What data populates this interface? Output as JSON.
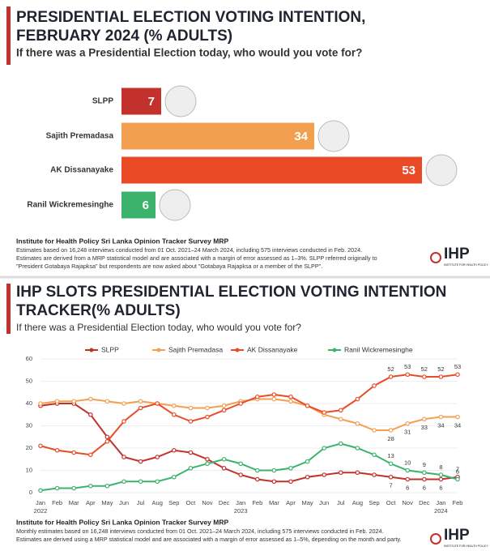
{
  "chart_data": [
    {
      "type": "hbar",
      "title": "PRESIDENTIAL ELECTION VOTING INTENTION,",
      "title_line2": "FEBRUARY 2024 (% ADULTS)",
      "subtitle": "If there was a Presidential Election today, who would you vote for?",
      "categories": [
        "SLPP",
        "Sajith Premadasa",
        "AK Dissanayake",
        "Ranil Wickremesinghe"
      ],
      "values": [
        7,
        34,
        53,
        6
      ],
      "colors": [
        "#c2312b",
        "#f2a04f",
        "#ea4b26",
        "#3bb36c"
      ],
      "source": "Institute for Health Policy Sri Lanka Opinion Tracker Survey MRP",
      "notes": [
        "Estimates based on 16,248 interviews conducted from 01 Oct. 2021–24 March 2024, including 575 interviews conducted in Feb. 2024.",
        "Estimates are derived from a MRP statistical model and are associated with a margin of error assessed as 1–3%. SLPP referred originally to",
        "\"President Gotabaya Rajapksa\" but respondents are now asked about \"Gotabaya Rajapksa or a member of the SLPP\"."
      ],
      "logo": "IHP",
      "logo_sub": "INSTITUTE FOR HEALTH POLICY"
    },
    {
      "type": "line",
      "title": "IHP SLOTS PRESIDENTIAL ELECTION VOTING INTENTION",
      "title_line2": "TRACKER(% ADULTS)",
      "subtitle": "If there was a Presidential Election today, who would you vote for?",
      "categories": [
        "Jan 2022",
        "Feb",
        "Mar",
        "Apr",
        "May",
        "Jun",
        "Jul",
        "Aug",
        "Sep",
        "Oct",
        "Nov",
        "Dec",
        "Jan 2023",
        "Feb",
        "Mar",
        "Apr",
        "May",
        "Jun",
        "Jul",
        "Aug",
        "Sep",
        "Oct",
        "Nov",
        "Dec",
        "Jan 2024",
        "Feb"
      ],
      "series": [
        {
          "name": "SLPP",
          "color": "#c2312b",
          "values": [
            39,
            40,
            40,
            35,
            25,
            16,
            14,
            16,
            19,
            18,
            15,
            11,
            8,
            6,
            5,
            5,
            7,
            8,
            9,
            9,
            8,
            7,
            6,
            6,
            6,
            7
          ]
        },
        {
          "name": "Sajith Premadasa",
          "color": "#f2a04f",
          "values": [
            40,
            41,
            41,
            42,
            41,
            40,
            41,
            40,
            39,
            38,
            38,
            39,
            41,
            42,
            42,
            41,
            39,
            35,
            33,
            31,
            28,
            28,
            31,
            33,
            34,
            34
          ]
        },
        {
          "name": "AK Dissanayake",
          "color": "#ea4b26",
          "values": [
            21,
            19,
            18,
            17,
            23,
            32,
            38,
            40,
            35,
            32,
            34,
            37,
            40,
            43,
            44,
            43,
            39,
            36,
            37,
            42,
            48,
            52,
            53,
            52,
            52,
            53
          ]
        },
        {
          "name": "Ranil Wickremesinghe",
          "color": "#3bb36c",
          "values": [
            1,
            2,
            2,
            3,
            3,
            5,
            5,
            5,
            7,
            11,
            13,
            15,
            13,
            10,
            10,
            11,
            14,
            20,
            22,
            20,
            17,
            13,
            10,
            9,
            8,
            6
          ]
        }
      ],
      "ylim": [
        0,
        60
      ],
      "yticks": [
        0,
        10,
        20,
        30,
        40,
        50,
        60
      ],
      "grid": true,
      "source": "Institute for Health Policy Sri Lanka Opinion Tracker Survey MRP",
      "notes": [
        "Monthly estimates based on 16,248 interviews conducted from 01 Oct. 2021–24 March 2024, including 575 interviews conducted in Feb. 2024.",
        "Estimates are derived using a MRP statistical model and are associated with a margin of error assessed as 1–5%, depending on the month and party."
      ],
      "logo": "IHP",
      "logo_sub": "INSTITUTE FOR HEALTH POLICY"
    }
  ]
}
